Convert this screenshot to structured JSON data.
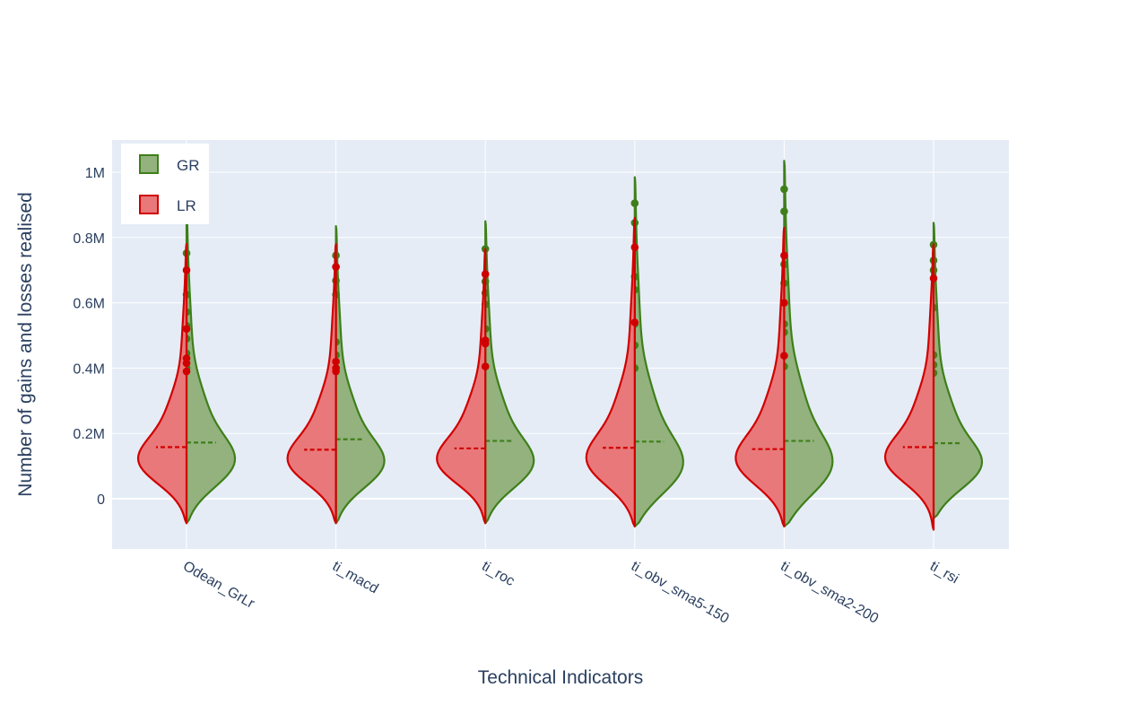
{
  "chart_data": {
    "type": "violin",
    "title": "",
    "xlabel": "Technical Indicators",
    "ylabel": "Number of gains and losses realised",
    "categories": [
      "Odean_GrLr",
      "ti_macd",
      "ti_roc",
      "ti_obv_sma5-150",
      "ti_obv_sma2-200",
      "ti_rsi"
    ],
    "ylim": [
      -150000,
      1100000
    ],
    "y_ticks": [
      0,
      200000,
      400000,
      600000,
      800000,
      1000000
    ],
    "y_tick_labels": [
      "0",
      "0.2M",
      "0.4M",
      "0.6M",
      "0.8M",
      "1M"
    ],
    "grid": true,
    "legend_position": "top-left",
    "series": [
      {
        "name": "GR",
        "side": "positive",
        "line_color": "#3f7f1a",
        "fill_color": "#93b27e",
        "values_by_category": [
          {
            "category": "Odean_GrLr",
            "mean": 172000,
            "min": -75000,
            "max": 880000,
            "mode": 100000,
            "outliers": [
              752000,
              625000,
              572000,
              530000,
              490000,
              445000,
              400000
            ]
          },
          {
            "category": "ti_macd",
            "mean": 182000,
            "min": -75000,
            "max": 835000,
            "mode": 95000,
            "outliers": [
              745000,
              710000,
              668000,
              625000,
              480000,
              440000,
              400000
            ]
          },
          {
            "category": "ti_roc",
            "mean": 177000,
            "min": -75000,
            "max": 850000,
            "mode": 95000,
            "outliers": [
              765000,
              665000,
              630000,
              595000,
              520000,
              480000,
              405000
            ]
          },
          {
            "category": "ti_obv_sma5-150",
            "mean": 175000,
            "min": -85000,
            "max": 985000,
            "mode": 85000,
            "outliers": [
              905000,
              845000,
              680000,
              640000,
              535000,
              470000,
              400000
            ]
          },
          {
            "category": "ti_obv_sma2-200",
            "mean": 177000,
            "min": -85000,
            "max": 1035000,
            "mode": 85000,
            "outliers": [
              948000,
              880000,
              718000,
              660000,
              535000,
              510000,
              405000
            ]
          },
          {
            "category": "ti_rsi",
            "mean": 170000,
            "min": -60000,
            "max": 845000,
            "mode": 90000,
            "outliers": [
              778000,
              730000,
              700000,
              585000,
              440000,
              410000,
              385000
            ]
          }
        ]
      },
      {
        "name": "LR",
        "side": "negative",
        "line_color": "#d00000",
        "fill_color": "#e9787a",
        "values_by_category": [
          {
            "category": "Odean_GrLr",
            "mean": 158000,
            "min": -75000,
            "max": 780000,
            "mode": 105000,
            "outliers": [
              700000,
              520000,
              430000,
              415000,
              390000
            ]
          },
          {
            "category": "ti_macd",
            "mean": 150000,
            "min": -75000,
            "max": 780000,
            "mode": 105000,
            "outliers": [
              710000,
              420000,
              400000,
              390000
            ]
          },
          {
            "category": "ti_roc",
            "mean": 154000,
            "min": -75000,
            "max": 765000,
            "mode": 105000,
            "outliers": [
              688000,
              485000,
              475000,
              405000
            ]
          },
          {
            "category": "ti_obv_sma5-150",
            "mean": 156000,
            "min": -85000,
            "max": 860000,
            "mode": 105000,
            "outliers": [
              770000,
              540000
            ]
          },
          {
            "category": "ti_obv_sma2-200",
            "mean": 152000,
            "min": -85000,
            "max": 830000,
            "mode": 105000,
            "outliers": [
              745000,
              600000,
              438000
            ]
          },
          {
            "category": "ti_rsi",
            "mean": 158000,
            "min": -95000,
            "max": 780000,
            "mode": 110000,
            "outliers": [
              675000
            ]
          }
        ]
      }
    ]
  }
}
